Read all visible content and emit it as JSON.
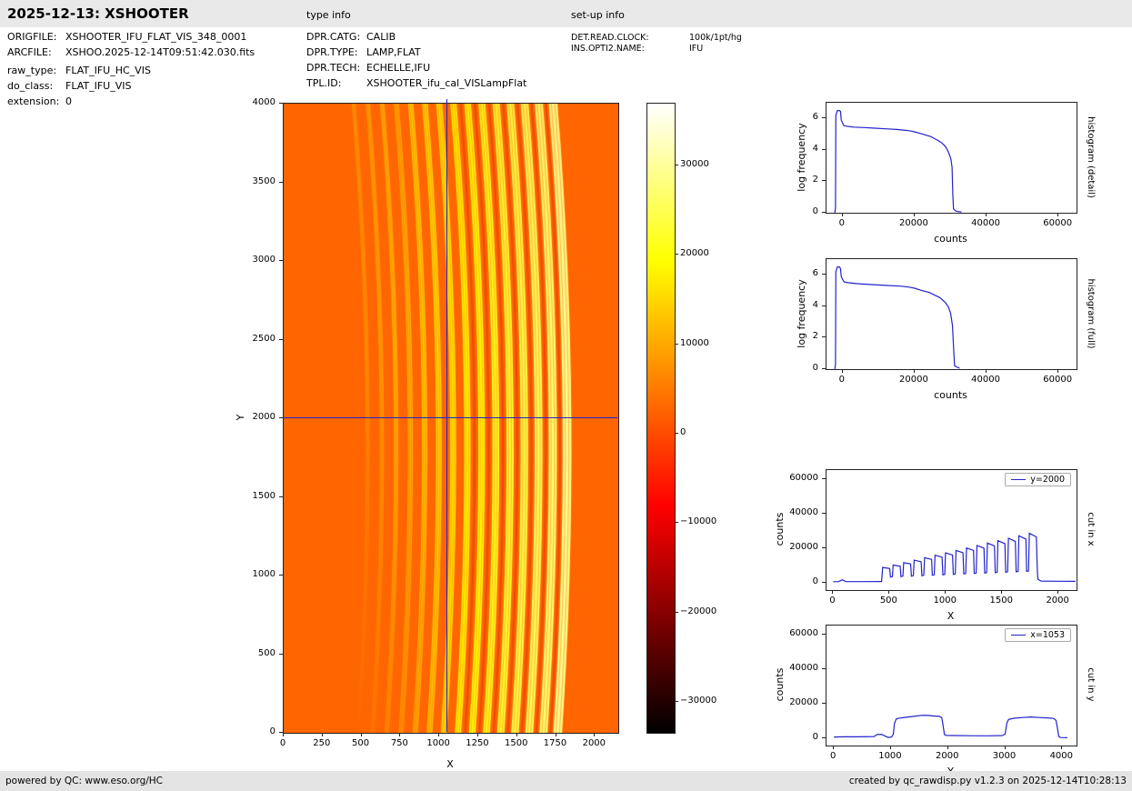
{
  "header": {
    "title": "2025-12-13: XSHOOTER",
    "type_info_label": "type info",
    "setup_info_label": "set-up info"
  },
  "file_info": {
    "rows": [
      {
        "label": "ORIGFILE:",
        "value": "XSHOOTER_IFU_FLAT_VIS_348_0001"
      },
      {
        "label": "ARCFILE:",
        "value": "XSHOO.2025-12-14T09:51:42.030.fits"
      },
      {
        "label": "raw_type:",
        "value": "FLAT_IFU_HC_VIS"
      },
      {
        "label": "do_class:",
        "value": "FLAT_IFU_VIS"
      },
      {
        "label": "extension:",
        "value": "0"
      }
    ]
  },
  "type_info": {
    "rows": [
      {
        "label": "DPR.CATG:",
        "value": "CALIB"
      },
      {
        "label": "DPR.TYPE:",
        "value": "LAMP,FLAT"
      },
      {
        "label": "DPR.TECH:",
        "value": "ECHELLE,IFU"
      },
      {
        "label": "TPL.ID:",
        "value": "XSHOOTER_ifu_cal_VISLampFlat"
      }
    ]
  },
  "setup_info": {
    "rows": [
      {
        "label": "DET.READ.CLOCK:",
        "value": "100k/1pt/hg"
      },
      {
        "label": "INS.OPTI2.NAME:",
        "value": "IFU"
      }
    ]
  },
  "footer": {
    "left": "powered by QC: www.eso.org/HC",
    "right": "created by qc_rawdisp.py v1.2.3 on 2025-12-14T10:28:13"
  },
  "colors": {
    "line": "#2222cc",
    "bar_bg": "#e9e9e9"
  },
  "chart_data": [
    {
      "id": "main_image",
      "type": "heatmap",
      "xlabel": "X",
      "ylabel": "Y",
      "xlim": [
        0,
        2150
      ],
      "ylim": [
        0,
        4000
      ],
      "xticks": [
        0,
        250,
        500,
        750,
        1000,
        1250,
        1500,
        1750,
        2000
      ],
      "yticks": [
        0,
        500,
        1000,
        1500,
        2000,
        2500,
        3000,
        3500,
        4000
      ],
      "crosshair": {
        "x": 1053,
        "y": 2000
      },
      "background_counts": 3000,
      "orders": {
        "count": 15,
        "x_top_start": 450,
        "spacing": 91.5,
        "bow": 90,
        "widths": [
          26,
          28,
          30,
          32,
          34,
          36,
          38,
          40,
          42,
          44,
          46,
          48,
          50,
          52,
          56
        ],
        "peak_counts": [
          8800,
          10200,
          11600,
          13000,
          14400,
          15800,
          17200,
          18600,
          20000,
          21400,
          22800,
          24200,
          25600,
          27000,
          28800
        ]
      },
      "colorbar": {
        "vmin": -33450,
        "vmax": 36900,
        "colormap": "hot",
        "gradient_stops": [
          [
            0,
            "#ffffff"
          ],
          [
            0.25,
            "#ffff00"
          ],
          [
            0.64,
            "#ff0000"
          ],
          [
            1,
            "#000000"
          ]
        ],
        "ticks": [
          {
            "v": 30000,
            "label": "30000"
          },
          {
            "v": 20000,
            "label": "20000"
          },
          {
            "v": 10000,
            "label": "10000"
          },
          {
            "v": 0,
            "label": "0"
          },
          {
            "v": -10000,
            "label": "−10000"
          },
          {
            "v": -20000,
            "label": "−20000"
          },
          {
            "v": -30000,
            "label": "−30000"
          }
        ]
      }
    },
    {
      "id": "hist_detail",
      "type": "line",
      "right_label": "histogram (detail)",
      "xlabel": "counts",
      "ylabel": "log frequency",
      "xlim": [
        -4500,
        65000
      ],
      "ylim": [
        0,
        7
      ],
      "xticks": [
        0,
        20000,
        40000,
        60000
      ],
      "yticks": [
        0,
        2,
        4,
        6
      ],
      "points": [
        [
          -2200,
          0
        ],
        [
          -2000,
          0.3
        ],
        [
          -1900,
          6.2
        ],
        [
          -1500,
          6.5
        ],
        [
          -900,
          6.5
        ],
        [
          -600,
          6.45
        ],
        [
          -400,
          5.9
        ],
        [
          0,
          5.7
        ],
        [
          300,
          5.55
        ],
        [
          1200,
          5.5
        ],
        [
          3000,
          5.45
        ],
        [
          6000,
          5.42
        ],
        [
          9000,
          5.38
        ],
        [
          12000,
          5.34
        ],
        [
          15000,
          5.3
        ],
        [
          17000,
          5.26
        ],
        [
          18500,
          5.22
        ],
        [
          20000,
          5.15
        ],
        [
          21500,
          5.05
        ],
        [
          23000,
          4.95
        ],
        [
          24500,
          4.85
        ],
        [
          25500,
          4.72
        ],
        [
          26500,
          4.6
        ],
        [
          27500,
          4.45
        ],
        [
          28300,
          4.28
        ],
        [
          29000,
          4.05
        ],
        [
          29600,
          3.75
        ],
        [
          30100,
          3.4
        ],
        [
          30400,
          2.9
        ],
        [
          30600,
          1.2
        ],
        [
          30800,
          0.25
        ],
        [
          31500,
          0.1
        ],
        [
          33000,
          0.05
        ]
      ]
    },
    {
      "id": "hist_full",
      "type": "line",
      "right_label": "histogram (full)",
      "xlabel": "counts",
      "ylabel": "log frequency",
      "xlim": [
        -4500,
        65000
      ],
      "ylim": [
        0,
        7
      ],
      "xticks": [
        0,
        20000,
        40000,
        60000
      ],
      "yticks": [
        0,
        2,
        4,
        6
      ],
      "points": [
        [
          -2200,
          0
        ],
        [
          -2000,
          0.3
        ],
        [
          -1900,
          6.2
        ],
        [
          -1500,
          6.5
        ],
        [
          -900,
          6.5
        ],
        [
          -600,
          6.4
        ],
        [
          -400,
          5.9
        ],
        [
          0,
          5.7
        ],
        [
          400,
          5.55
        ],
        [
          1500,
          5.5
        ],
        [
          4000,
          5.44
        ],
        [
          8000,
          5.38
        ],
        [
          12000,
          5.33
        ],
        [
          16000,
          5.28
        ],
        [
          18500,
          5.22
        ],
        [
          20000,
          5.15
        ],
        [
          22000,
          5.0
        ],
        [
          24000,
          4.88
        ],
        [
          25500,
          4.72
        ],
        [
          27000,
          4.55
        ],
        [
          28500,
          4.25
        ],
        [
          29400,
          3.95
        ],
        [
          30000,
          3.55
        ],
        [
          30500,
          2.8
        ],
        [
          30900,
          1.0
        ],
        [
          31100,
          0.2
        ],
        [
          32500,
          0.05
        ]
      ]
    },
    {
      "id": "cut_x",
      "type": "line",
      "right_label": "cut in x",
      "legend": "y=2000",
      "xlabel": "X",
      "ylabel": "counts",
      "xlim": [
        -60,
        2160
      ],
      "ylim": [
        -4000,
        65000
      ],
      "xticks": [
        0,
        500,
        1000,
        1500,
        2000
      ],
      "yticks": [
        0,
        20000,
        40000,
        60000
      ],
      "points": [
        [
          0,
          800
        ],
        [
          50,
          850
        ],
        [
          80,
          1900
        ],
        [
          110,
          850
        ],
        [
          300,
          850
        ],
        [
          415,
          900
        ],
        [
          429,
          900
        ],
        [
          439,
          9000
        ],
        [
          501,
          8400
        ],
        [
          508,
          3500
        ],
        [
          525,
          3750
        ],
        [
          532,
          10400
        ],
        [
          594,
          9700
        ],
        [
          601,
          3750
        ],
        [
          618,
          4000
        ],
        [
          625,
          11800
        ],
        [
          687,
          11000
        ],
        [
          694,
          4000
        ],
        [
          711,
          4250
        ],
        [
          718,
          13200
        ],
        [
          780,
          12300
        ],
        [
          787,
          4250
        ],
        [
          804,
          4500
        ],
        [
          811,
          14600
        ],
        [
          873,
          13600
        ],
        [
          880,
          4500
        ],
        [
          897,
          4750
        ],
        [
          904,
          16000
        ],
        [
          966,
          14900
        ],
        [
          973,
          4750
        ],
        [
          990,
          5000
        ],
        [
          997,
          17400
        ],
        [
          1059,
          16200
        ],
        [
          1066,
          5000
        ],
        [
          1083,
          5250
        ],
        [
          1090,
          18800
        ],
        [
          1152,
          17500
        ],
        [
          1159,
          5250
        ],
        [
          1176,
          5500
        ],
        [
          1183,
          20200
        ],
        [
          1245,
          18800
        ],
        [
          1252,
          5500
        ],
        [
          1269,
          5750
        ],
        [
          1276,
          21600
        ],
        [
          1338,
          20100
        ],
        [
          1345,
          5750
        ],
        [
          1362,
          6000
        ],
        [
          1369,
          23000
        ],
        [
          1431,
          21400
        ],
        [
          1438,
          6000
        ],
        [
          1455,
          6250
        ],
        [
          1462,
          24400
        ],
        [
          1524,
          22700
        ],
        [
          1531,
          6250
        ],
        [
          1548,
          6500
        ],
        [
          1555,
          25800
        ],
        [
          1617,
          24000
        ],
        [
          1624,
          6500
        ],
        [
          1641,
          6750
        ],
        [
          1648,
          27200
        ],
        [
          1710,
          25300
        ],
        [
          1717,
          6750
        ],
        [
          1734,
          7000
        ],
        [
          1741,
          28600
        ],
        [
          1803,
          26600
        ],
        [
          1812,
          7000
        ],
        [
          1818,
          2200
        ],
        [
          1845,
          1200
        ],
        [
          2000,
          1050
        ],
        [
          2150,
          1000
        ]
      ]
    },
    {
      "id": "cut_y",
      "type": "line",
      "right_label": "cut in y",
      "legend": "x=1053",
      "xlabel": "Y",
      "ylabel": "counts",
      "xlim": [
        -130,
        4250
      ],
      "ylim": [
        -4000,
        65000
      ],
      "xticks": [
        0,
        1000,
        2000,
        3000,
        4000
      ],
      "yticks": [
        0,
        20000,
        40000,
        60000
      ],
      "points": [
        [
          0,
          900
        ],
        [
          180,
          1000
        ],
        [
          420,
          1000
        ],
        [
          700,
          1150
        ],
        [
          760,
          2400
        ],
        [
          830,
          2500
        ],
        [
          900,
          1400
        ],
        [
          950,
          650
        ],
        [
          1010,
          900
        ],
        [
          1040,
          2500
        ],
        [
          1060,
          8500
        ],
        [
          1090,
          11200
        ],
        [
          1150,
          11800
        ],
        [
          1250,
          12200
        ],
        [
          1400,
          12800
        ],
        [
          1550,
          13400
        ],
        [
          1650,
          13300
        ],
        [
          1750,
          13000
        ],
        [
          1850,
          12800
        ],
        [
          1890,
          12000
        ],
        [
          1910,
          8000
        ],
        [
          1935,
          2400
        ],
        [
          1970,
          1800
        ],
        [
          2100,
          1750
        ],
        [
          2400,
          1650
        ],
        [
          2700,
          1600
        ],
        [
          2950,
          1750
        ],
        [
          3000,
          2600
        ],
        [
          3030,
          9000
        ],
        [
          3060,
          11000
        ],
        [
          3150,
          11700
        ],
        [
          3300,
          12100
        ],
        [
          3450,
          12400
        ],
        [
          3600,
          12100
        ],
        [
          3750,
          11900
        ],
        [
          3850,
          11600
        ],
        [
          3890,
          10500
        ],
        [
          3915,
          6000
        ],
        [
          3940,
          1100
        ],
        [
          3975,
          600
        ],
        [
          4090,
          500
        ]
      ]
    }
  ]
}
